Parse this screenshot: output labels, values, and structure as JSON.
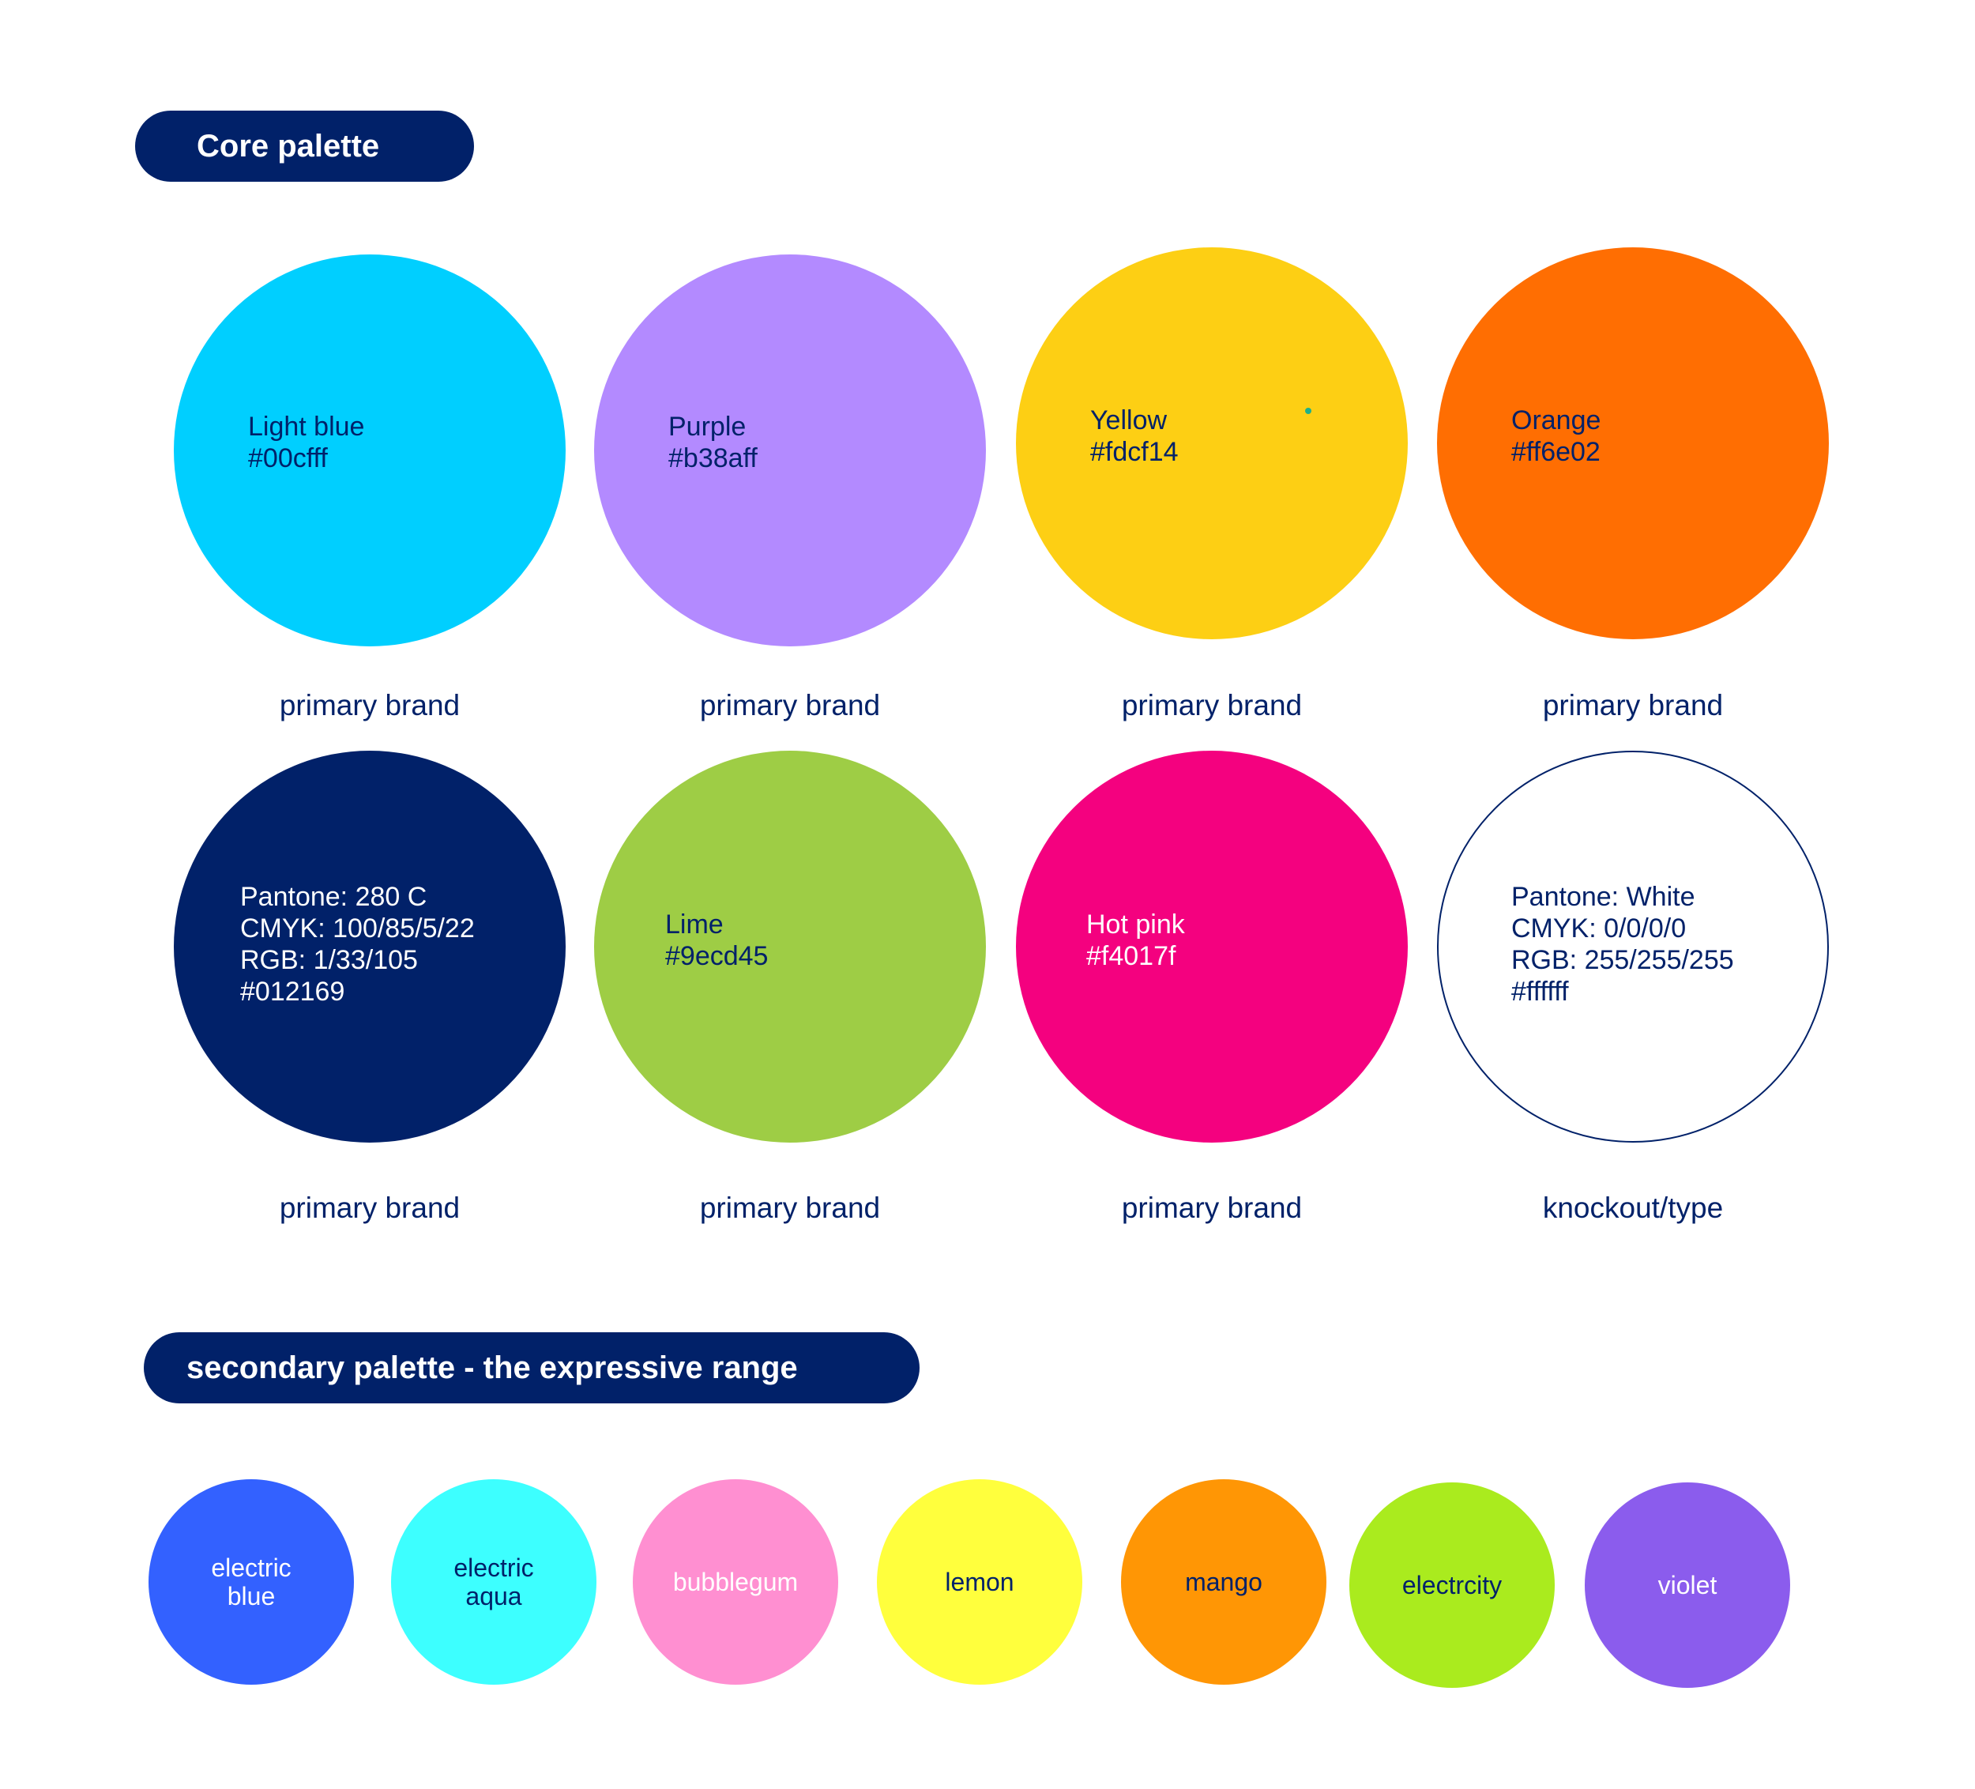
{
  "core": {
    "title": "Core palette",
    "swatches": [
      {
        "lines": [
          "Light blue",
          "#00cfff"
        ],
        "role": "primary brand",
        "color": "#00cfff",
        "text_color": "#012169"
      },
      {
        "lines": [
          "Purple",
          "#b38aff"
        ],
        "role": "primary brand",
        "color": "#b38aff",
        "text_color": "#012169"
      },
      {
        "lines": [
          "Yellow",
          "#fdcf14"
        ],
        "role": "primary brand",
        "color": "#fdcf14",
        "text_color": "#012169"
      },
      {
        "lines": [
          "Orange",
          "#ff6e02"
        ],
        "role": "primary brand",
        "color": "#ff6e02",
        "text_color": "#012169"
      },
      {
        "lines": [
          "Pantone: 280 C",
          "CMYK: 100/85/5/22",
          "RGB: 1/33/105",
          "#012169"
        ],
        "role": "primary brand",
        "color": "#012169",
        "text_color": "#ffffff"
      },
      {
        "lines": [
          "Lime",
          "#9ecd45"
        ],
        "role": "primary brand",
        "color": "#9ecd45",
        "text_color": "#012169"
      },
      {
        "lines": [
          "Hot pink",
          "#f4017f"
        ],
        "role": "primary brand",
        "color": "#f4017f",
        "text_color": "#ffffff"
      },
      {
        "lines": [
          "Pantone: White",
          "CMYK: 0/0/0/0",
          "RGB: 255/255/255",
          "#ffffff"
        ],
        "role": "knockout/type",
        "color": "#ffffff",
        "text_color": "#012169"
      }
    ]
  },
  "secondary": {
    "title": "secondary palette - the expressive range",
    "swatches": [
      {
        "lines": [
          "electric",
          "blue"
        ],
        "color": "#3361ff",
        "text_color": "#ffffff"
      },
      {
        "lines": [
          "electric",
          "aqua"
        ],
        "color": "#3dffff",
        "text_color": "#012169"
      },
      {
        "lines": [
          "bubblegum"
        ],
        "color": "#ff8fd1",
        "text_color": "#ffffff"
      },
      {
        "lines": [
          "lemon"
        ],
        "color": "#ffff3d",
        "text_color": "#012169"
      },
      {
        "lines": [
          "mango"
        ],
        "color": "#ff9605",
        "text_color": "#012169"
      },
      {
        "lines": [
          "electrcity"
        ],
        "color": "#aaeb1e",
        "text_color": "#012169"
      },
      {
        "lines": [
          "violet"
        ],
        "color": "#8b5ced",
        "text_color": "#ffffff"
      }
    ]
  },
  "colors": {
    "navy": "#012169",
    "background": "#ffffff"
  }
}
